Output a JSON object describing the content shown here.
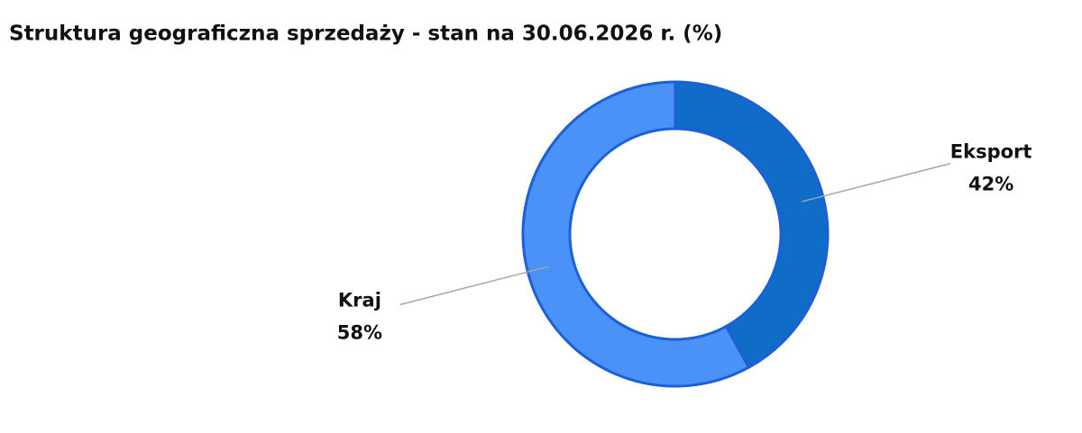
{
  "chart_data": {
    "type": "donut",
    "title": "Struktura geograficzna sprzedaży - stan na 30.06.2026 r. (%)",
    "categories": [
      "Eksport",
      "Kraj"
    ],
    "values": [
      42,
      58
    ],
    "value_labels": [
      "42%",
      "58%"
    ],
    "colors": [
      "#0f6cc7",
      "#4a92f7"
    ]
  }
}
